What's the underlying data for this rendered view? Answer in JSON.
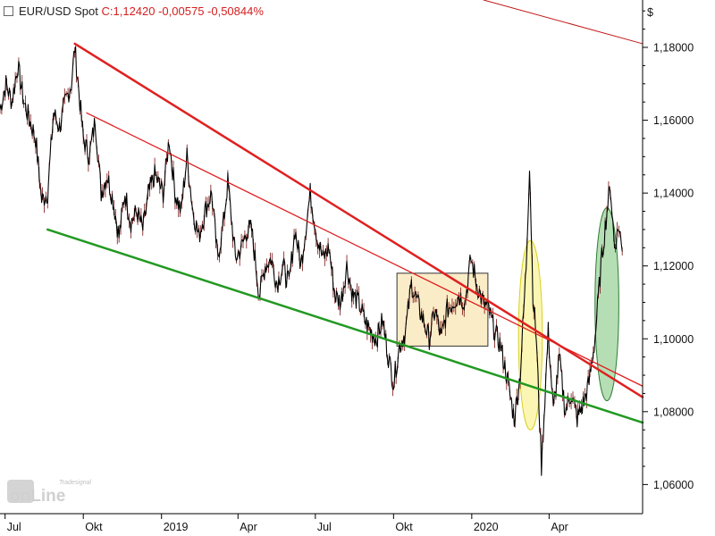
{
  "header": {
    "symbol": "EUR/USD Spot",
    "quote": "C:1,12420 -0,00575 -0,50844%"
  },
  "currency_label": "$",
  "logo": {
    "top": "Tradesignal",
    "bottom": "onLine"
  },
  "chart_data": {
    "type": "line",
    "title": "EUR/USD Spot",
    "y_ticks": [
      "1,18000",
      "1,16000",
      "1,14000",
      "1,12000",
      "1,10000",
      "1,08000",
      "1,06000"
    ],
    "y_tick_values": [
      1.18,
      1.16,
      1.14,
      1.12,
      1.1,
      1.08,
      1.06
    ],
    "ylim": [
      1.052,
      1.193
    ],
    "x_ticks": [
      {
        "label": "Jul",
        "date": "2018-07-01"
      },
      {
        "label": "Okt",
        "date": "2018-10-01"
      },
      {
        "label": "2019",
        "date": "2019-01-01"
      },
      {
        "label": "Apr",
        "date": "2019-04-01"
      },
      {
        "label": "Jul",
        "date": "2019-07-01"
      },
      {
        "label": "Okt",
        "date": "2019-10-01"
      },
      {
        "label": "2020",
        "date": "2020-01-01"
      },
      {
        "label": "Apr",
        "date": "2020-04-01"
      }
    ],
    "xlim": [
      "2018-06-25",
      "2020-07-20"
    ],
    "last_close": 1.1242,
    "series": [
      {
        "color": "#000000",
        "points": [
          [
            "2018-06-25",
            1.163
          ],
          [
            "2018-07-02",
            1.17
          ],
          [
            "2018-07-09",
            1.165
          ],
          [
            "2018-07-16",
            1.175
          ],
          [
            "2018-07-23",
            1.165
          ],
          [
            "2018-07-30",
            1.16
          ],
          [
            "2018-08-06",
            1.155
          ],
          [
            "2018-08-13",
            1.138
          ],
          [
            "2018-08-20",
            1.14
          ],
          [
            "2018-08-27",
            1.162
          ],
          [
            "2018-09-03",
            1.158
          ],
          [
            "2018-09-10",
            1.165
          ],
          [
            "2018-09-17",
            1.17
          ],
          [
            "2018-09-21",
            1.18
          ],
          [
            "2018-10-01",
            1.155
          ],
          [
            "2018-10-08",
            1.15
          ],
          [
            "2018-10-15",
            1.16
          ],
          [
            "2018-10-22",
            1.14
          ],
          [
            "2018-10-29",
            1.145
          ],
          [
            "2018-11-05",
            1.138
          ],
          [
            "2018-11-12",
            1.128
          ],
          [
            "2018-11-19",
            1.14
          ],
          [
            "2018-11-26",
            1.132
          ],
          [
            "2018-12-03",
            1.135
          ],
          [
            "2018-12-10",
            1.13
          ],
          [
            "2018-12-17",
            1.14
          ],
          [
            "2018-12-24",
            1.145
          ],
          [
            "2019-01-03",
            1.14
          ],
          [
            "2019-01-10",
            1.155
          ],
          [
            "2019-01-17",
            1.14
          ],
          [
            "2019-01-24",
            1.135
          ],
          [
            "2019-01-31",
            1.15
          ],
          [
            "2019-02-07",
            1.135
          ],
          [
            "2019-02-14",
            1.128
          ],
          [
            "2019-02-21",
            1.135
          ],
          [
            "2019-03-01",
            1.14
          ],
          [
            "2019-03-08",
            1.122
          ],
          [
            "2019-03-15",
            1.132
          ],
          [
            "2019-03-20",
            1.143
          ],
          [
            "2019-03-29",
            1.122
          ],
          [
            "2019-04-05",
            1.125
          ],
          [
            "2019-04-12",
            1.13
          ],
          [
            "2019-04-17",
            1.13
          ],
          [
            "2019-04-26",
            1.112
          ],
          [
            "2019-05-03",
            1.12
          ],
          [
            "2019-05-10",
            1.122
          ],
          [
            "2019-05-17",
            1.115
          ],
          [
            "2019-05-24",
            1.12
          ],
          [
            "2019-05-31",
            1.115
          ],
          [
            "2019-06-07",
            1.13
          ],
          [
            "2019-06-14",
            1.12
          ],
          [
            "2019-06-25",
            1.14
          ],
          [
            "2019-07-03",
            1.128
          ],
          [
            "2019-07-10",
            1.122
          ],
          [
            "2019-07-17",
            1.125
          ],
          [
            "2019-07-24",
            1.112
          ],
          [
            "2019-07-31",
            1.11
          ],
          [
            "2019-08-07",
            1.12
          ],
          [
            "2019-08-14",
            1.112
          ],
          [
            "2019-08-21",
            1.11
          ],
          [
            "2019-08-28",
            1.105
          ],
          [
            "2019-09-04",
            1.102
          ],
          [
            "2019-09-11",
            1.1
          ],
          [
            "2019-09-18",
            1.105
          ],
          [
            "2019-09-25",
            1.095
          ],
          [
            "2019-10-01",
            1.088
          ],
          [
            "2019-10-08",
            1.098
          ],
          [
            "2019-10-15",
            1.102
          ],
          [
            "2019-10-22",
            1.115
          ],
          [
            "2019-10-29",
            1.11
          ],
          [
            "2019-11-05",
            1.105
          ],
          [
            "2019-11-12",
            1.1
          ],
          [
            "2019-11-19",
            1.108
          ],
          [
            "2019-11-26",
            1.1
          ],
          [
            "2019-12-03",
            1.108
          ],
          [
            "2019-12-10",
            1.11
          ],
          [
            "2019-12-17",
            1.112
          ],
          [
            "2019-12-24",
            1.11
          ],
          [
            "2019-12-31",
            1.122
          ],
          [
            "2020-01-07",
            1.115
          ],
          [
            "2020-01-14",
            1.11
          ],
          [
            "2020-01-21",
            1.108
          ],
          [
            "2020-01-28",
            1.102
          ],
          [
            "2020-02-04",
            1.098
          ],
          [
            "2020-02-11",
            1.09
          ],
          [
            "2020-02-20",
            1.078
          ],
          [
            "2020-02-27",
            1.09
          ],
          [
            "2020-03-05",
            1.12
          ],
          [
            "2020-03-09",
            1.148
          ],
          [
            "2020-03-13",
            1.112
          ],
          [
            "2020-03-17",
            1.1
          ],
          [
            "2020-03-23",
            1.065
          ],
          [
            "2020-03-31",
            1.102
          ],
          [
            "2020-04-06",
            1.08
          ],
          [
            "2020-04-13",
            1.095
          ],
          [
            "2020-04-20",
            1.08
          ],
          [
            "2020-04-27",
            1.085
          ],
          [
            "2020-05-04",
            1.078
          ],
          [
            "2020-05-11",
            1.082
          ],
          [
            "2020-05-18",
            1.088
          ],
          [
            "2020-05-25",
            1.1
          ],
          [
            "2020-06-01",
            1.12
          ],
          [
            "2020-06-08",
            1.135
          ],
          [
            "2020-06-12",
            1.142
          ],
          [
            "2020-06-17",
            1.125
          ],
          [
            "2020-06-22",
            1.131
          ],
          [
            "2020-06-26",
            1.124
          ]
        ]
      }
    ],
    "trendlines": [
      {
        "color": "#e02020",
        "width": 2.5,
        "from": [
          "2018-09-21",
          1.181
        ],
        "to": [
          "2020-07-20",
          1.084
        ]
      },
      {
        "color": "#e02020",
        "width": 1.3,
        "from": [
          "2018-10-05",
          1.162
        ],
        "to": [
          "2020-07-20",
          1.087
        ]
      },
      {
        "color": "#c21818",
        "width": 1.0,
        "from": [
          "2020-01-15",
          1.193
        ],
        "to": [
          "2020-07-20",
          1.181
        ]
      },
      {
        "color": "#229922",
        "width": 2.5,
        "from": [
          "2018-08-20",
          1.13
        ],
        "to": [
          "2020-07-20",
          1.077
        ]
      }
    ],
    "zones": [
      {
        "shape": "rect",
        "fill": "#fbecc8",
        "stroke": "#333333",
        "from": [
          "2019-10-05",
          1.118
        ],
        "to": [
          "2020-01-20",
          1.098
        ]
      },
      {
        "shape": "ellipse",
        "fill": "#fbf4a8",
        "stroke": "#d8d020",
        "center": [
          "2020-03-10",
          1.101
        ],
        "rx_days": 14,
        "ry": 0.026
      },
      {
        "shape": "ellipse",
        "fill": "#a8d8a8",
        "stroke": "#2e7d32",
        "center": [
          "2020-06-08",
          1.1095
        ],
        "rx_days": 14,
        "ry": 0.0265
      }
    ]
  }
}
